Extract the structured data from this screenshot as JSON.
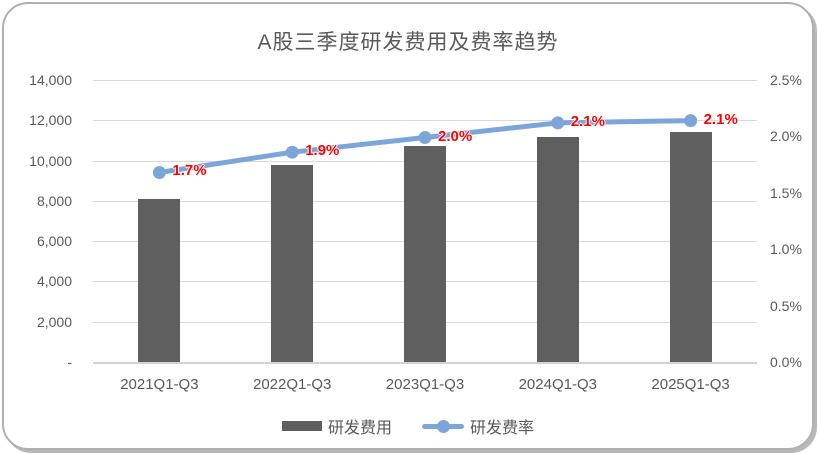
{
  "chart_data": {
    "type": "combo",
    "title": "A股三季度研发费用及费率趋势",
    "categories": [
      "2021Q1-Q3",
      "2022Q1-Q3",
      "2023Q1-Q3",
      "2024Q1-Q3",
      "2025Q1-Q3"
    ],
    "series": [
      {
        "name": "研发费用",
        "type": "bar",
        "axis": "left",
        "values": [
          8100,
          9800,
          10700,
          11150,
          11400
        ],
        "color": "#5f5f5f"
      },
      {
        "name": "研发费率",
        "type": "line",
        "axis": "right",
        "values": [
          1.7,
          1.9,
          2.0,
          2.1,
          2.1
        ],
        "values_precise_pct": [
          1.68,
          1.86,
          1.99,
          2.12,
          2.14
        ],
        "point_labels": [
          "1.7%",
          "1.9%",
          "2.0%",
          "2.1%",
          "2.1%"
        ],
        "color": "#7ca6d9",
        "point_label_color": "#ff0000"
      }
    ],
    "left_axis": {
      "min": 0,
      "max": 14000,
      "step": 2000,
      "tick_labels_top_to_bottom": [
        "14,000",
        "12,000",
        "10,000",
        "8,000",
        "6,000",
        "4,000",
        "2,000",
        "-"
      ]
    },
    "right_axis": {
      "min": 0,
      "max": 2.5,
      "step": 0.5,
      "tick_labels_top_to_bottom": [
        "2.5%",
        "2.0%",
        "1.5%",
        "1.0%",
        "0.5%",
        "0.0%"
      ]
    },
    "grid": true,
    "legend_position": "bottom",
    "colors": {
      "grid": "#d9d9d9",
      "axis_text": "#595959",
      "title_text": "#595959",
      "card_border": "#b0b0b0"
    }
  }
}
